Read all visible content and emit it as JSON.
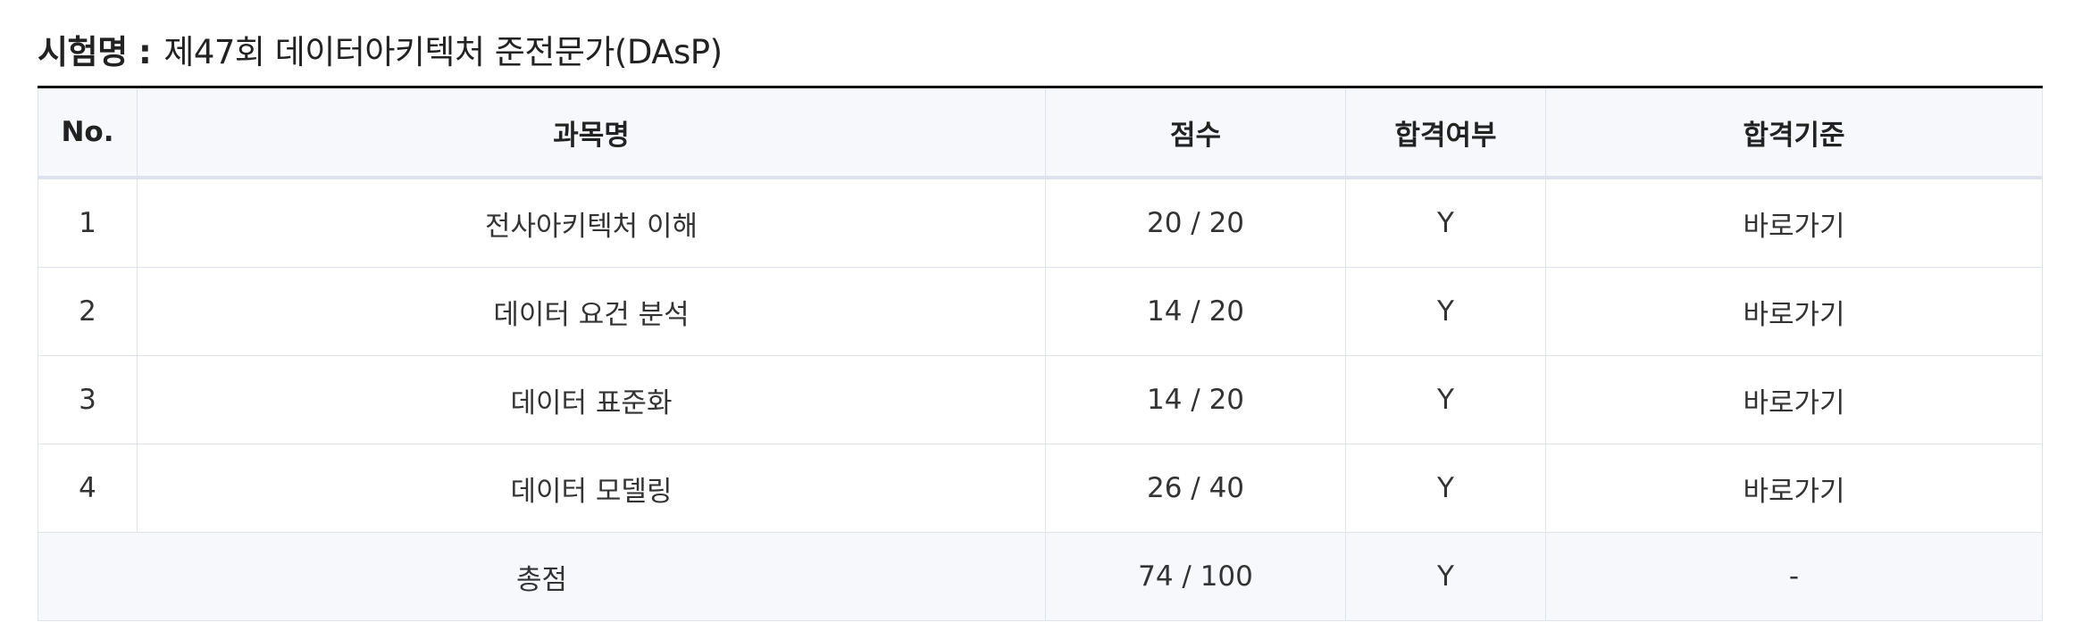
{
  "exam": {
    "label": "시험명 :",
    "name": "제47회 데이터아키텍처 준전문가(DAsP)"
  },
  "table": {
    "headers": {
      "no": "No.",
      "subject": "과목명",
      "score": "점수",
      "pass": "합격여부",
      "criteria": "합격기준"
    },
    "rows": [
      {
        "no": "1",
        "subject": "전사아키텍처 이해",
        "score": "20 / 20",
        "pass": "Y",
        "criteria": "바로가기"
      },
      {
        "no": "2",
        "subject": "데이터 요건 분석",
        "score": "14 / 20",
        "pass": "Y",
        "criteria": "바로가기"
      },
      {
        "no": "3",
        "subject": "데이터 표준화",
        "score": "14 / 20",
        "pass": "Y",
        "criteria": "바로가기"
      },
      {
        "no": "4",
        "subject": "데이터 모델링",
        "score": "26 / 40",
        "pass": "Y",
        "criteria": "바로가기"
      }
    ],
    "total": {
      "label": "총점",
      "score": "74 / 100",
      "pass": "Y",
      "criteria": "-"
    }
  }
}
